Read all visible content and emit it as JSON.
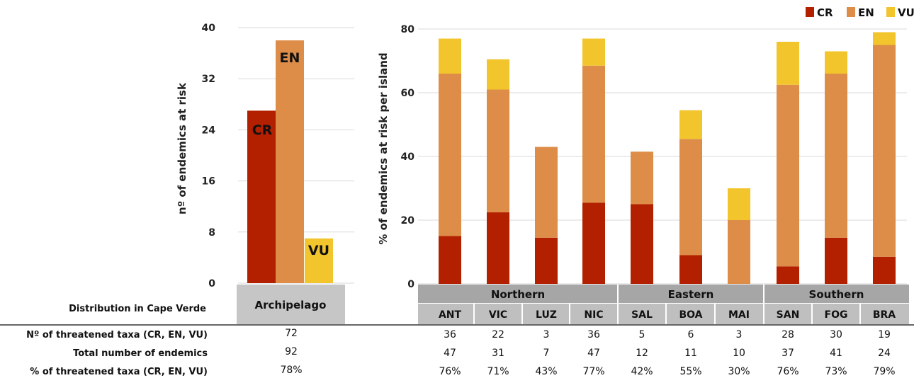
{
  "colors": {
    "CR": "#b32000",
    "EN": "#dd8d48",
    "VU": "#f2c52d",
    "grid": "#d9d9d9",
    "group_bg": "#a6a6a6",
    "sub_bg": "#bfbfbf",
    "arch_bg": "#c6c6c6"
  },
  "legend": {
    "items": [
      {
        "key": "CR",
        "label": "CR"
      },
      {
        "key": "EN",
        "label": "EN"
      },
      {
        "key": "VU",
        "label": "VU"
      }
    ],
    "placement": "top-right"
  },
  "table": {
    "distribution_label": "Distribution in Cape Verde",
    "archipelago_label": "Archipelago",
    "row_labels": [
      "Nº of threatened taxa (CR, EN, VU)",
      "Total number of endemics",
      "% of threatened taxa (CR, EN, VU)"
    ],
    "archipelago_values": [
      "72",
      "92",
      "78%"
    ],
    "island_values": [
      [
        "36",
        "22",
        "3",
        "36",
        "5",
        "6",
        "3",
        "28",
        "30",
        "19"
      ],
      [
        "47",
        "31",
        "7",
        "47",
        "12",
        "11",
        "10",
        "37",
        "41",
        "24"
      ],
      [
        "76%",
        "71%",
        "43%",
        "77%",
        "42%",
        "55%",
        "30%",
        "76%",
        "73%",
        "79%"
      ]
    ]
  },
  "chart_data": [
    {
      "type": "bar",
      "ylabel": "nº of endemics at risk",
      "ylim": [
        0,
        40
      ],
      "yticks": [
        "0",
        "8",
        "16",
        "24",
        "32",
        "40"
      ],
      "grid": true,
      "categories": [
        "CR",
        "EN",
        "VU"
      ],
      "values": [
        27,
        38,
        7
      ],
      "bar_labels": [
        "CR",
        "EN",
        "VU"
      ]
    },
    {
      "type": "bar",
      "stacked": true,
      "ylabel": "% of endemics at risk per island",
      "ylim": [
        0,
        80
      ],
      "yticks": [
        "0",
        "20",
        "40",
        "60",
        "80"
      ],
      "grid": true,
      "groups": [
        {
          "label": "Northern",
          "categories": [
            "ANT",
            "VIC",
            "LUZ",
            "NIC"
          ]
        },
        {
          "label": "Eastern",
          "categories": [
            "SAL",
            "BOA",
            "MAI"
          ]
        },
        {
          "label": "Southern",
          "categories": [
            "SAN",
            "FOG",
            "BRA"
          ]
        }
      ],
      "categories": [
        "ANT",
        "VIC",
        "LUZ",
        "NIC",
        "SAL",
        "BOA",
        "MAI",
        "SAN",
        "FOG",
        "BRA"
      ],
      "series": [
        {
          "name": "CR",
          "values": [
            15,
            22.5,
            14.5,
            25.5,
            25,
            9,
            0,
            5.5,
            14.5,
            8.5
          ]
        },
        {
          "name": "EN",
          "values": [
            51,
            38.5,
            28.5,
            43,
            16.5,
            36.5,
            20,
            57,
            51.5,
            66.5
          ]
        },
        {
          "name": "VU",
          "values": [
            11,
            9.5,
            0,
            8.5,
            0,
            9,
            10,
            13.5,
            7,
            4
          ]
        }
      ]
    }
  ]
}
